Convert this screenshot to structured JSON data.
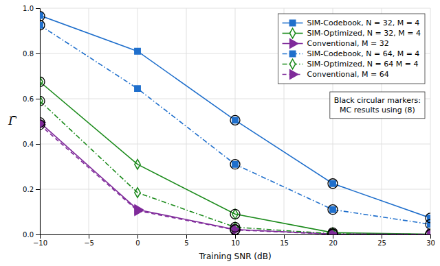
{
  "chart_data": {
    "type": "line",
    "x": [
      -10,
      0,
      10,
      20,
      30
    ],
    "xlim": [
      -10,
      30
    ],
    "ylim": [
      0,
      1.0
    ],
    "xticks": [
      {
        "value": -10,
        "label": "−10"
      },
      {
        "value": -5,
        "label": "−5"
      },
      0,
      5,
      10,
      15,
      20,
      25,
      30
    ],
    "yticks": [
      {
        "value": 0.0,
        "label": "0.0"
      },
      0.2,
      0.4,
      0.6,
      0.8,
      {
        "value": 1.0,
        "label": "1.0"
      }
    ],
    "xlabel": "Training SNR (dB)",
    "ylabel": "Γ̄",
    "grid": true,
    "legend": "upper right",
    "series": [
      {
        "name": "SIM-Codebook, N = 32, M = 4",
        "color": "#1f6fcc",
        "line_style": "solid",
        "marker": "square",
        "values": [
          0.968,
          0.81,
          0.505,
          0.225,
          0.073
        ],
        "mc_x": [
          -10,
          10,
          20,
          30
        ],
        "mc_values": [
          0.965,
          0.505,
          0.225,
          0.073
        ]
      },
      {
        "name": "SIM-Optimized, N = 32, M = 4",
        "color": "#1a8a1a",
        "line_style": "solid",
        "marker": "diamond-open",
        "values": [
          0.675,
          0.31,
          0.09,
          0.008,
          0.001
        ],
        "mc_x": [
          -10,
          10,
          20,
          30
        ],
        "mc_values": [
          0.675,
          0.09,
          0.008,
          0.001
        ]
      },
      {
        "name": "Conventional, M = 32",
        "color": "#7f2a9a",
        "line_style": "solid",
        "marker": "triangle-right",
        "values": [
          0.495,
          0.11,
          0.022,
          0.002,
          0.0005
        ],
        "mc_x": [
          -10,
          10,
          20,
          30
        ],
        "mc_values": [
          0.495,
          0.022,
          0.002,
          0.0005
        ]
      },
      {
        "name": "SIM-Codebook, N = 64, M = 4",
        "color": "#1f6fcc",
        "line_style": "dashdot",
        "marker": "square",
        "values": [
          0.925,
          0.645,
          0.31,
          0.11,
          0.045
        ],
        "mc_x": [
          -10,
          10,
          20,
          30
        ],
        "mc_values": [
          0.925,
          0.31,
          0.11,
          0.045
        ]
      },
      {
        "name": "SIM-Optimized, N = 64 M = 4",
        "color": "#1a8a1a",
        "line_style": "dashdot",
        "marker": "diamond-open",
        "values": [
          0.59,
          0.185,
          0.032,
          0.003,
          0.0005
        ],
        "mc_x": [
          -10,
          10,
          20,
          30
        ],
        "mc_values": [
          0.59,
          0.032,
          0.003,
          0.0005
        ]
      },
      {
        "name": "Conventional, M = 64",
        "color": "#7f2a9a",
        "line_style": "dashed",
        "marker": "triangle-right",
        "values": [
          0.485,
          0.105,
          0.02,
          0.001,
          0.0003
        ],
        "mc_x": [
          -10,
          10,
          20,
          30
        ],
        "mc_values": [
          0.485,
          0.02,
          0.001,
          0.0003
        ]
      }
    ],
    "annotations": [
      "Black circular markers:\nMC results using (8)"
    ]
  }
}
